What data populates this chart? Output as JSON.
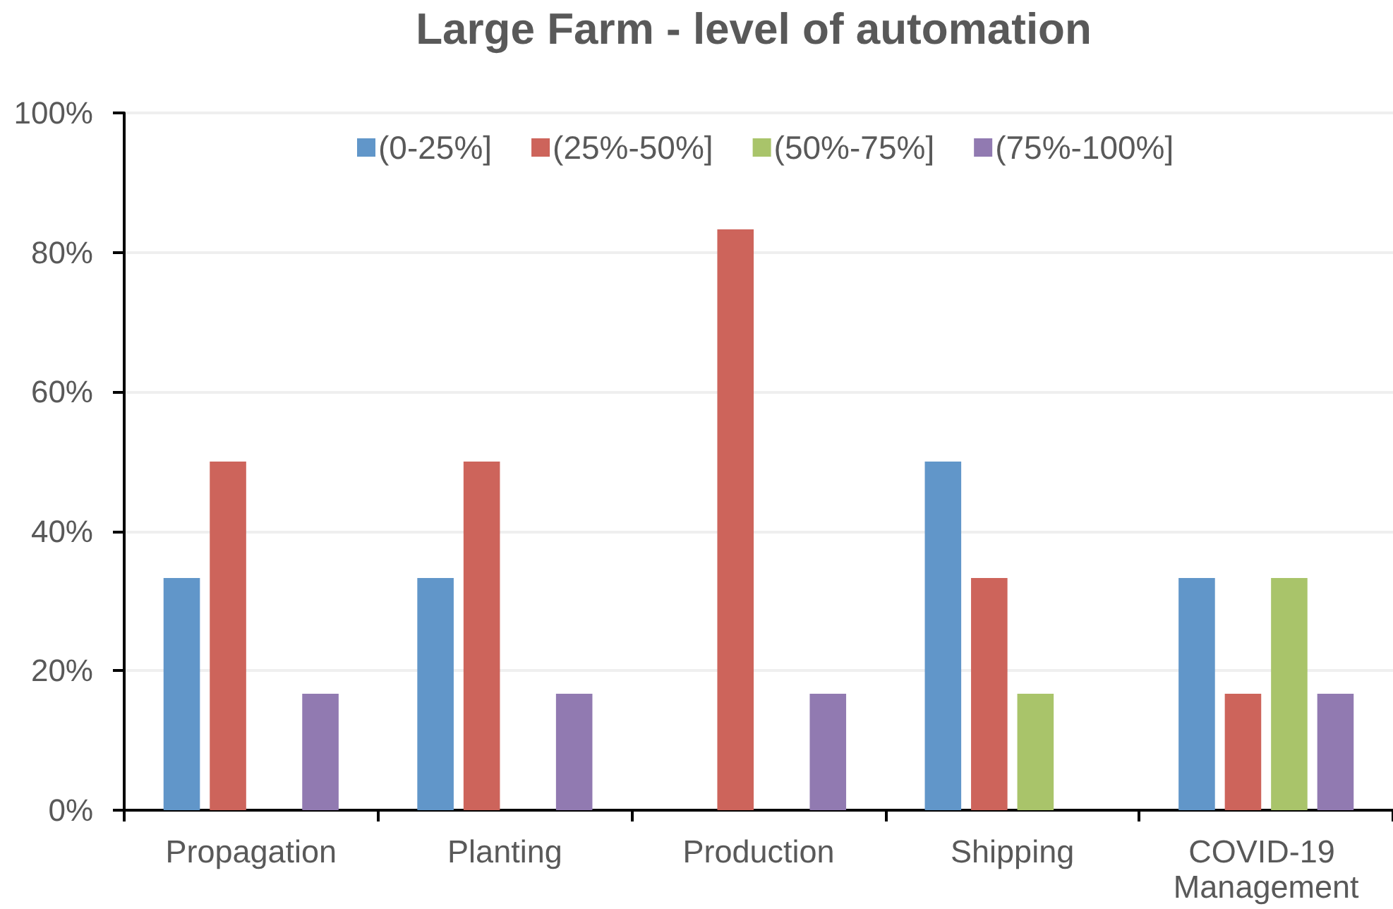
{
  "chart_data": {
    "type": "bar",
    "title": "Large Farm - level of automation",
    "categories": [
      "Propagation",
      "Planting",
      "Production",
      "Shipping",
      "COVID-19 Management"
    ],
    "series": [
      {
        "name": "(0-25%]",
        "color": "#6196c9",
        "values": [
          33.3,
          33.3,
          0,
          50,
          33.3
        ]
      },
      {
        "name": "(25%-50%]",
        "color": "#cd645b",
        "values": [
          50,
          50,
          83.3,
          33.3,
          16.7
        ]
      },
      {
        "name": "(50%-75%]",
        "color": "#a9c46a",
        "values": [
          0,
          0,
          0,
          16.7,
          33.3
        ]
      },
      {
        "name": "(75%-100%]",
        "color": "#917ab1",
        "values": [
          16.7,
          16.7,
          16.7,
          0,
          16.7
        ]
      }
    ],
    "ylim": [
      0,
      100
    ],
    "yticks": [
      {
        "value": 0,
        "label": "0%"
      },
      {
        "value": 20,
        "label": "20%"
      },
      {
        "value": 40,
        "label": "40%"
      },
      {
        "value": 60,
        "label": "60%"
      },
      {
        "value": 80,
        "label": "80%"
      },
      {
        "value": 100,
        "label": "100%"
      }
    ],
    "grid": "y",
    "legend": "top"
  }
}
